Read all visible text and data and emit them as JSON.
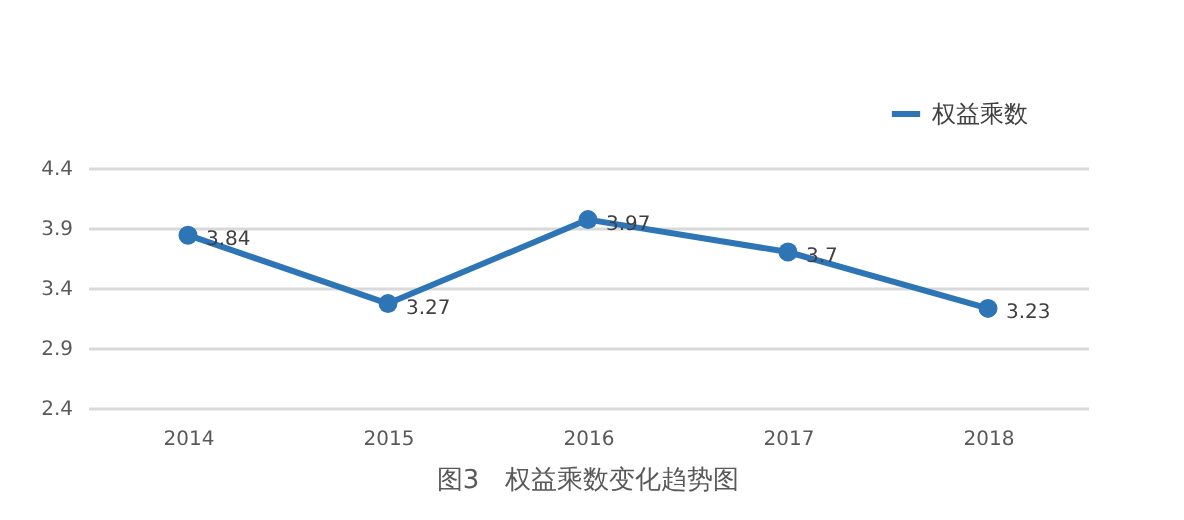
{
  "chart_data": {
    "type": "line",
    "title": "图3　权益乘数变化趋势图",
    "categories": [
      "2014",
      "2015",
      "2016",
      "2017",
      "2018"
    ],
    "series": [
      {
        "name": "权益乘数",
        "color": "#2e75b6",
        "values": [
          3.84,
          3.27,
          3.97,
          3.7,
          3.23
        ]
      }
    ],
    "ylim": [
      2.4,
      4.4
    ],
    "yticks": [
      2.4,
      2.9,
      3.4,
      3.9,
      4.4
    ],
    "grid": "y",
    "legend": "top right",
    "marker": "circle",
    "line_style": "solid",
    "data_labels": true
  }
}
